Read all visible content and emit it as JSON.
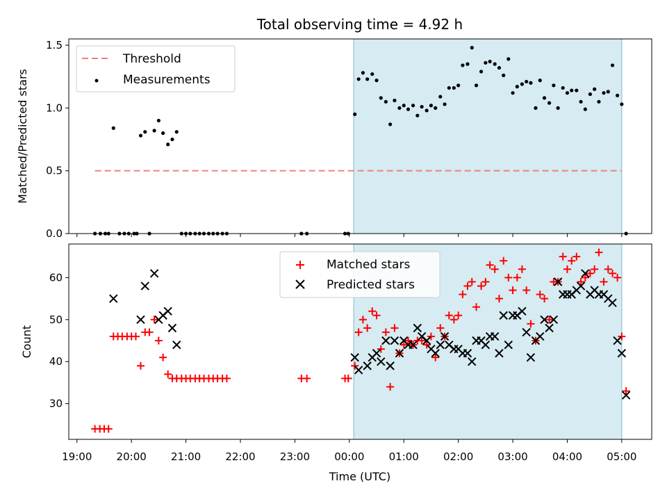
{
  "chart_data": [
    {
      "type": "scatter",
      "title": "Total observing time = 4.92 h",
      "xlabel": "",
      "ylabel": "Matched/Predicted stars",
      "xlim_hours": [
        18.85,
        29.55
      ],
      "ylim": [
        0,
        1.55
      ],
      "yticks": [
        0.0,
        0.5,
        1.0,
        1.5
      ],
      "yticklabels": [
        "0.0",
        "0.5",
        "1.0",
        "1.5"
      ],
      "shaded_x_hours": [
        24.08,
        29.0
      ],
      "legend_position": "upper-left",
      "legend": [
        "Threshold",
        "Measurements"
      ],
      "threshold": {
        "name": "Threshold",
        "value": 0.5,
        "x_hours": [
          19.33,
          29.0
        ],
        "color": "#f08080",
        "style": "dashed"
      },
      "series": [
        {
          "name": "Measurements",
          "color": "#000000",
          "points": [
            [
              19.33,
              0
            ],
            [
              19.43,
              0
            ],
            [
              19.52,
              0
            ],
            [
              19.58,
              0
            ],
            [
              19.67,
              0.84
            ],
            [
              19.78,
              0
            ],
            [
              19.87,
              0
            ],
            [
              19.95,
              0
            ],
            [
              20.05,
              0
            ],
            [
              20.1,
              0
            ],
            [
              20.17,
              0.78
            ],
            [
              20.25,
              0.81
            ],
            [
              20.33,
              0
            ],
            [
              20.42,
              0.82
            ],
            [
              20.5,
              0.9
            ],
            [
              20.58,
              0.8
            ],
            [
              20.67,
              0.71
            ],
            [
              20.75,
              0.75
            ],
            [
              20.83,
              0.81
            ],
            [
              20.92,
              0
            ],
            [
              21.0,
              0
            ],
            [
              21.08,
              0
            ],
            [
              21.17,
              0
            ],
            [
              21.25,
              0
            ],
            [
              21.33,
              0
            ],
            [
              21.42,
              0
            ],
            [
              21.5,
              0
            ],
            [
              21.58,
              0
            ],
            [
              21.67,
              0
            ],
            [
              21.75,
              0
            ],
            [
              23.12,
              0
            ],
            [
              23.22,
              0
            ],
            [
              23.92,
              0
            ],
            [
              23.98,
              0
            ],
            [
              24.1,
              0.95
            ],
            [
              24.17,
              1.23
            ],
            [
              24.25,
              1.28
            ],
            [
              24.33,
              1.23
            ],
            [
              24.42,
              1.27
            ],
            [
              24.5,
              1.22
            ],
            [
              24.58,
              1.08
            ],
            [
              24.67,
              1.05
            ],
            [
              24.75,
              0.87
            ],
            [
              24.83,
              1.06
            ],
            [
              24.92,
              1.0
            ],
            [
              25.0,
              1.02
            ],
            [
              25.08,
              0.99
            ],
            [
              25.17,
              1.02
            ],
            [
              25.25,
              0.94
            ],
            [
              25.33,
              1.01
            ],
            [
              25.42,
              0.98
            ],
            [
              25.5,
              1.02
            ],
            [
              25.58,
              1.0
            ],
            [
              25.67,
              1.09
            ],
            [
              25.75,
              1.03
            ],
            [
              25.83,
              1.16
            ],
            [
              25.92,
              1.16
            ],
            [
              26.0,
              1.18
            ],
            [
              26.08,
              1.34
            ],
            [
              26.17,
              1.35
            ],
            [
              26.25,
              1.48
            ],
            [
              26.33,
              1.18
            ],
            [
              26.42,
              1.29
            ],
            [
              26.5,
              1.36
            ],
            [
              26.58,
              1.37
            ],
            [
              26.67,
              1.35
            ],
            [
              26.75,
              1.32
            ],
            [
              26.83,
              1.26
            ],
            [
              26.92,
              1.39
            ],
            [
              27.0,
              1.12
            ],
            [
              27.08,
              1.17
            ],
            [
              27.17,
              1.19
            ],
            [
              27.25,
              1.21
            ],
            [
              27.33,
              1.2
            ],
            [
              27.42,
              1.0
            ],
            [
              27.5,
              1.22
            ],
            [
              27.58,
              1.08
            ],
            [
              27.67,
              1.04
            ],
            [
              27.75,
              1.18
            ],
            [
              27.83,
              1.0
            ],
            [
              27.92,
              1.16
            ],
            [
              28.0,
              1.12
            ],
            [
              28.08,
              1.14
            ],
            [
              28.17,
              1.14
            ],
            [
              28.25,
              1.05
            ],
            [
              28.33,
              0.99
            ],
            [
              28.42,
              1.11
            ],
            [
              28.5,
              1.15
            ],
            [
              28.58,
              1.05
            ],
            [
              28.67,
              1.12
            ],
            [
              28.75,
              1.13
            ],
            [
              28.83,
              1.34
            ],
            [
              28.92,
              1.1
            ],
            [
              29.0,
              1.03
            ],
            [
              29.08,
              0
            ]
          ]
        }
      ]
    },
    {
      "type": "scatter",
      "title": "",
      "xlabel": "Time (UTC)",
      "ylabel": "Count",
      "xlim_hours": [
        18.85,
        29.55
      ],
      "ylim": [
        21.5,
        68
      ],
      "yticks": [
        30,
        40,
        50,
        60
      ],
      "xtick_hours": [
        19,
        20,
        21,
        22,
        23,
        24,
        25,
        26,
        27,
        28,
        29
      ],
      "xticklabels": [
        "19:00",
        "20:00",
        "21:00",
        "22:00",
        "23:00",
        "00:00",
        "01:00",
        "02:00",
        "03:00",
        "04:00",
        "05:00"
      ],
      "shaded_x_hours": [
        24.08,
        29.0
      ],
      "legend_position": "upper-center",
      "legend": [
        "Matched stars",
        "Predicted stars"
      ],
      "series": [
        {
          "name": "Matched stars",
          "marker": "plus",
          "color": "#ff0000",
          "points": [
            [
              19.33,
              24
            ],
            [
              19.42,
              24
            ],
            [
              19.5,
              24
            ],
            [
              19.58,
              24
            ],
            [
              19.67,
              46
            ],
            [
              19.75,
              46
            ],
            [
              19.83,
              46
            ],
            [
              19.92,
              46
            ],
            [
              20.0,
              46
            ],
            [
              20.08,
              46
            ],
            [
              20.17,
              39
            ],
            [
              20.25,
              47
            ],
            [
              20.33,
              47
            ],
            [
              20.42,
              50
            ],
            [
              20.5,
              45
            ],
            [
              20.58,
              41
            ],
            [
              20.67,
              37
            ],
            [
              20.75,
              36
            ],
            [
              20.83,
              36
            ],
            [
              20.92,
              36
            ],
            [
              21.0,
              36
            ],
            [
              21.08,
              36
            ],
            [
              21.17,
              36
            ],
            [
              21.25,
              36
            ],
            [
              21.33,
              36
            ],
            [
              21.42,
              36
            ],
            [
              21.5,
              36
            ],
            [
              21.58,
              36
            ],
            [
              21.67,
              36
            ],
            [
              21.75,
              36
            ],
            [
              23.12,
              36
            ],
            [
              23.22,
              36
            ],
            [
              23.92,
              36
            ],
            [
              23.98,
              36
            ],
            [
              24.1,
              39
            ],
            [
              24.17,
              47
            ],
            [
              24.25,
              50
            ],
            [
              24.33,
              48
            ],
            [
              24.42,
              52
            ],
            [
              24.5,
              51
            ],
            [
              24.58,
              43
            ],
            [
              24.67,
              47
            ],
            [
              24.75,
              34
            ],
            [
              24.83,
              48
            ],
            [
              24.92,
              42
            ],
            [
              25.0,
              44
            ],
            [
              25.08,
              45
            ],
            [
              25.17,
              44
            ],
            [
              25.25,
              45
            ],
            [
              25.33,
              45
            ],
            [
              25.42,
              44
            ],
            [
              25.5,
              46
            ],
            [
              25.58,
              41
            ],
            [
              25.67,
              48
            ],
            [
              25.75,
              46
            ],
            [
              25.83,
              51
            ],
            [
              25.92,
              50
            ],
            [
              26.0,
              51
            ],
            [
              26.08,
              56
            ],
            [
              26.17,
              58
            ],
            [
              26.25,
              59
            ],
            [
              26.33,
              53
            ],
            [
              26.42,
              58
            ],
            [
              26.5,
              59
            ],
            [
              26.58,
              63
            ],
            [
              26.67,
              62
            ],
            [
              26.75,
              55
            ],
            [
              26.83,
              64
            ],
            [
              26.92,
              60
            ],
            [
              27.0,
              57
            ],
            [
              27.08,
              60
            ],
            [
              27.17,
              62
            ],
            [
              27.25,
              57
            ],
            [
              27.33,
              49
            ],
            [
              27.42,
              45
            ],
            [
              27.5,
              56
            ],
            [
              27.58,
              55
            ],
            [
              27.67,
              50
            ],
            [
              27.75,
              59
            ],
            [
              27.83,
              59
            ],
            [
              27.92,
              65
            ],
            [
              28.0,
              62
            ],
            [
              28.08,
              64
            ],
            [
              28.17,
              65
            ],
            [
              28.25,
              59
            ],
            [
              28.33,
              60
            ],
            [
              28.42,
              61
            ],
            [
              28.5,
              62
            ],
            [
              28.58,
              66
            ],
            [
              28.67,
              59
            ],
            [
              28.75,
              62
            ],
            [
              28.83,
              61
            ],
            [
              28.92,
              60
            ],
            [
              29.0,
              46
            ],
            [
              29.08,
              33
            ]
          ]
        },
        {
          "name": "Predicted stars",
          "marker": "x",
          "color": "#000000",
          "points": [
            [
              19.67,
              55
            ],
            [
              20.17,
              50
            ],
            [
              20.25,
              58
            ],
            [
              20.42,
              61
            ],
            [
              20.5,
              50
            ],
            [
              20.58,
              51
            ],
            [
              20.67,
              52
            ],
            [
              20.75,
              48
            ],
            [
              20.83,
              44
            ],
            [
              24.1,
              41
            ],
            [
              24.17,
              38
            ],
            [
              24.33,
              39
            ],
            [
              24.42,
              41
            ],
            [
              24.5,
              42
            ],
            [
              24.58,
              40
            ],
            [
              24.67,
              45
            ],
            [
              24.75,
              39
            ],
            [
              24.83,
              45
            ],
            [
              24.92,
              42
            ],
            [
              25.0,
              45
            ],
            [
              25.08,
              44
            ],
            [
              25.17,
              44
            ],
            [
              25.25,
              48
            ],
            [
              25.33,
              46
            ],
            [
              25.42,
              45
            ],
            [
              25.5,
              43
            ],
            [
              25.58,
              42
            ],
            [
              25.67,
              44
            ],
            [
              25.75,
              46
            ],
            [
              25.83,
              44
            ],
            [
              25.92,
              43
            ],
            [
              26.0,
              43
            ],
            [
              26.08,
              42
            ],
            [
              26.17,
              42
            ],
            [
              26.25,
              40
            ],
            [
              26.33,
              45
            ],
            [
              26.42,
              45
            ],
            [
              26.5,
              44
            ],
            [
              26.58,
              46
            ],
            [
              26.67,
              46
            ],
            [
              26.75,
              42
            ],
            [
              26.83,
              51
            ],
            [
              26.92,
              44
            ],
            [
              27.0,
              51
            ],
            [
              27.08,
              51
            ],
            [
              27.17,
              52
            ],
            [
              27.25,
              47
            ],
            [
              27.33,
              41
            ],
            [
              27.42,
              45
            ],
            [
              27.5,
              46
            ],
            [
              27.58,
              50
            ],
            [
              27.67,
              48
            ],
            [
              27.75,
              50
            ],
            [
              27.83,
              59
            ],
            [
              27.92,
              56
            ],
            [
              28.0,
              56
            ],
            [
              28.08,
              56
            ],
            [
              28.17,
              57
            ],
            [
              28.25,
              58
            ],
            [
              28.33,
              61
            ],
            [
              28.42,
              56
            ],
            [
              28.5,
              57
            ],
            [
              28.58,
              56
            ],
            [
              28.67,
              56
            ],
            [
              28.75,
              55
            ],
            [
              28.83,
              54
            ],
            [
              28.92,
              45
            ],
            [
              29.0,
              42
            ],
            [
              29.08,
              32
            ]
          ]
        }
      ]
    }
  ]
}
